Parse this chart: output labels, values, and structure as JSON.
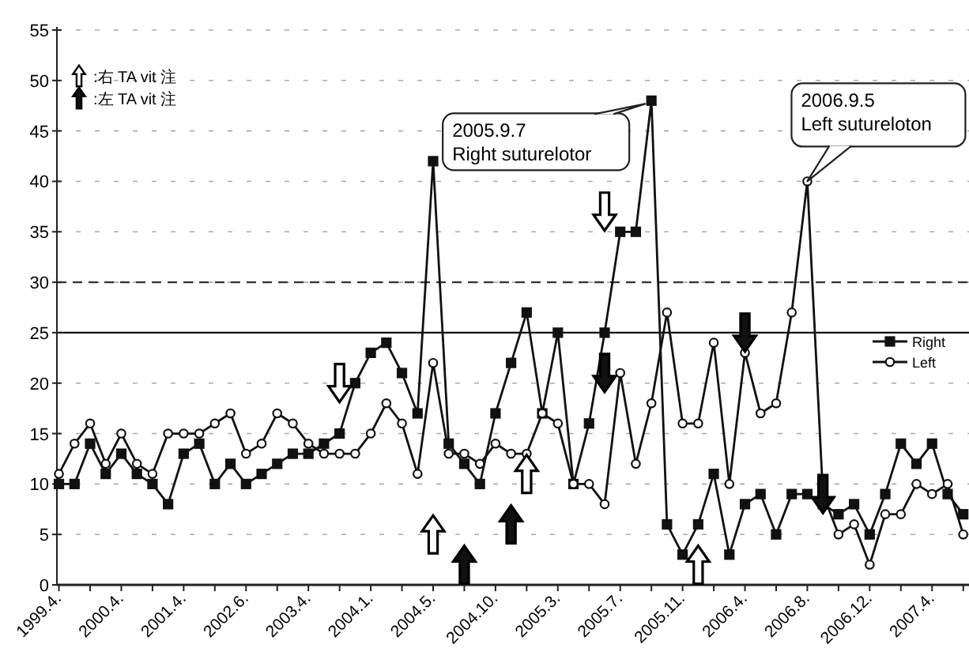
{
  "chart_data": {
    "type": "line",
    "categories": [
      "1999.4.",
      null,
      null,
      null,
      "2000.4.",
      null,
      null,
      null,
      "2001.4.",
      null,
      null,
      null,
      "2002.6.",
      null,
      null,
      null,
      "2003.4.",
      null,
      null,
      null,
      "2004.1.",
      null,
      null,
      null,
      "2004.5.",
      null,
      null,
      null,
      "2004.10.",
      null,
      null,
      null,
      "2005.3.",
      null,
      null,
      null,
      "2005.7.",
      null,
      null,
      null,
      "2005.11.",
      null,
      null,
      null,
      "2006.4.",
      null,
      null,
      null,
      "2006.8.",
      null,
      null,
      null,
      "2006.12.",
      null,
      null,
      null,
      "2007.4.",
      null,
      null
    ],
    "ylim": [
      0,
      55
    ],
    "yticks": [
      0,
      5,
      10,
      15,
      20,
      25,
      30,
      35,
      40,
      45,
      50,
      55
    ],
    "grid": "y",
    "legend": "right",
    "series": [
      {
        "name": "Right",
        "color": "#111111",
        "marker": "square",
        "values": [
          10,
          10,
          14,
          11,
          13,
          11,
          10,
          8,
          13,
          14,
          10,
          12,
          10,
          11,
          12,
          13,
          13,
          14,
          15,
          20,
          23,
          24,
          21,
          17,
          42,
          14,
          12,
          10,
          17,
          22,
          27,
          17,
          25,
          10,
          16,
          25,
          35,
          35,
          48,
          6,
          3,
          6,
          11,
          3,
          8,
          9,
          5,
          9,
          9,
          8,
          7,
          8,
          5,
          9,
          14,
          12,
          14,
          9,
          7
        ]
      },
      {
        "name": "Left",
        "color": "#111111",
        "marker": "circle",
        "values": [
          11,
          14,
          16,
          12,
          15,
          12,
          11,
          15,
          15,
          15,
          16,
          17,
          13,
          14,
          17,
          16,
          14,
          13,
          13,
          13,
          15,
          18,
          16,
          11,
          22,
          13,
          13,
          12,
          14,
          13,
          13,
          17,
          16,
          10,
          10,
          8,
          21,
          12,
          18,
          27,
          16,
          16,
          24,
          10,
          23,
          17,
          18,
          27,
          40,
          9,
          5,
          6,
          2,
          7,
          7,
          10,
          9,
          10,
          5
        ]
      },
      {
        "name": ":右 TA vit 注",
        "type": "scatter",
        "color": "#ffffff",
        "marker": "triangle",
        "values": [
          null,
          null,
          null,
          null,
          null,
          null,
          null,
          null,
          null,
          null,
          null,
          null,
          null,
          null,
          null,
          null,
          null,
          null,
          null,
          null,
          null,
          null,
          null,
          null,
          5,
          null,
          null,
          null,
          null,
          null,
          11,
          null,
          null,
          null,
          null,
          null,
          null,
          null,
          null,
          null,
          null,
          2,
          null,
          null,
          null,
          null,
          null,
          null,
          null,
          null,
          null,
          null,
          null,
          null,
          null,
          null,
          null,
          null,
          null
        ]
      },
      {
        "type": "scatter",
        "color": "#ffffff",
        "values": [
          null,
          null,
          null,
          null,
          null,
          null,
          null,
          null,
          null,
          null,
          null,
          null,
          null,
          null,
          null,
          null,
          null,
          null,
          20,
          null,
          null,
          null,
          null,
          null,
          null,
          null,
          null,
          null,
          null,
          null,
          null,
          null,
          null,
          null,
          null,
          37,
          null,
          null,
          null,
          null,
          null,
          null,
          null,
          null,
          null,
          null,
          null,
          null,
          null,
          null,
          null,
          null,
          null,
          null,
          null,
          null,
          null,
          null,
          null
        ]
      },
      {
        "name": ":左 TA vit 注",
        "type": "scatter",
        "color": "#111111",
        "marker": "triangle",
        "values": [
          null,
          null,
          null,
          null,
          null,
          null,
          null,
          null,
          null,
          null,
          null,
          null,
          null,
          null,
          null,
          null,
          null,
          null,
          null,
          null,
          null,
          null,
          null,
          null,
          null,
          null,
          2,
          null,
          null,
          6,
          null,
          null,
          null,
          null,
          null,
          null,
          null,
          null,
          null,
          null,
          null,
          null,
          null,
          null,
          null,
          null,
          null,
          null,
          null,
          null,
          null,
          null,
          null,
          null,
          null,
          null,
          null,
          null,
          null
        ]
      },
      {
        "type": "scatter",
        "color": "#111111",
        "values": [
          null,
          null,
          null,
          null,
          null,
          null,
          null,
          null,
          null,
          null,
          null,
          null,
          null,
          null,
          null,
          null,
          null,
          null,
          null,
          null,
          null,
          null,
          null,
          null,
          null,
          null,
          null,
          null,
          null,
          null,
          null,
          null,
          null,
          null,
          null,
          21,
          null,
          null,
          null,
          null,
          null,
          null,
          null,
          null,
          25,
          null,
          null,
          null,
          null,
          9,
          null,
          null,
          null,
          null,
          null,
          null,
          null,
          null,
          null
        ]
      }
    ],
    "ref_lines": [
      {
        "axis": "y",
        "value": 25,
        "color": "#111111",
        "line_style": "solid"
      },
      {
        "axis": "y",
        "value": 30,
        "color": "#333333",
        "line_style": "dashed"
      }
    ],
    "annotations": [
      "2005.9.7\nRight suturelotor",
      {
        "text": "2006.9.5\nLeft sutureloton",
        "x": "2006.8.",
        "y": 40
      }
    ]
  }
}
